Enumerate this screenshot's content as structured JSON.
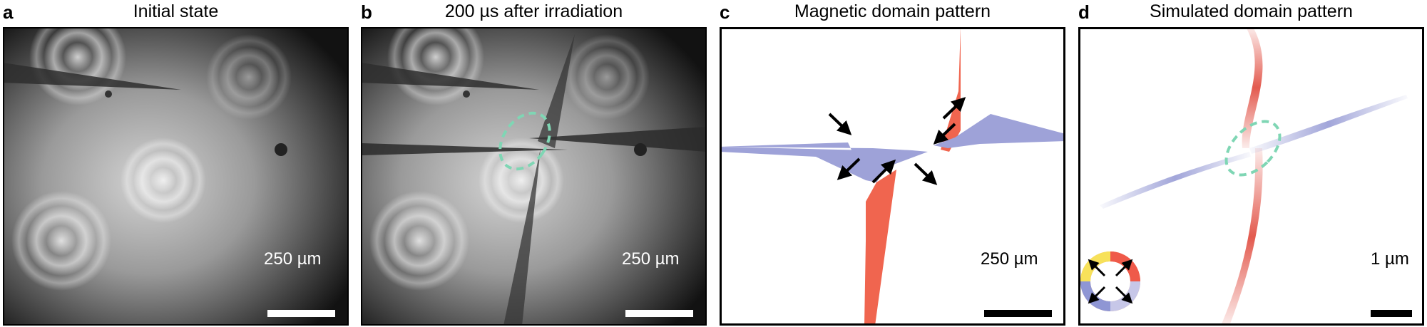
{
  "panels": [
    {
      "letter": "a",
      "title": "Initial state",
      "scale_label": "250 µm"
    },
    {
      "letter": "b",
      "title": "200 µs after irradiation",
      "scale_label": "250 µm"
    },
    {
      "letter": "c",
      "title": "Magnetic domain pattern",
      "scale_label": "250 µm"
    },
    {
      "letter": "d",
      "title": "Simulated domain pattern",
      "scale_label": "1 µm"
    }
  ],
  "colors": {
    "domain_red": "#f0654f",
    "domain_blue": "#9ea2d8",
    "highlight": "#7fd6b4"
  }
}
